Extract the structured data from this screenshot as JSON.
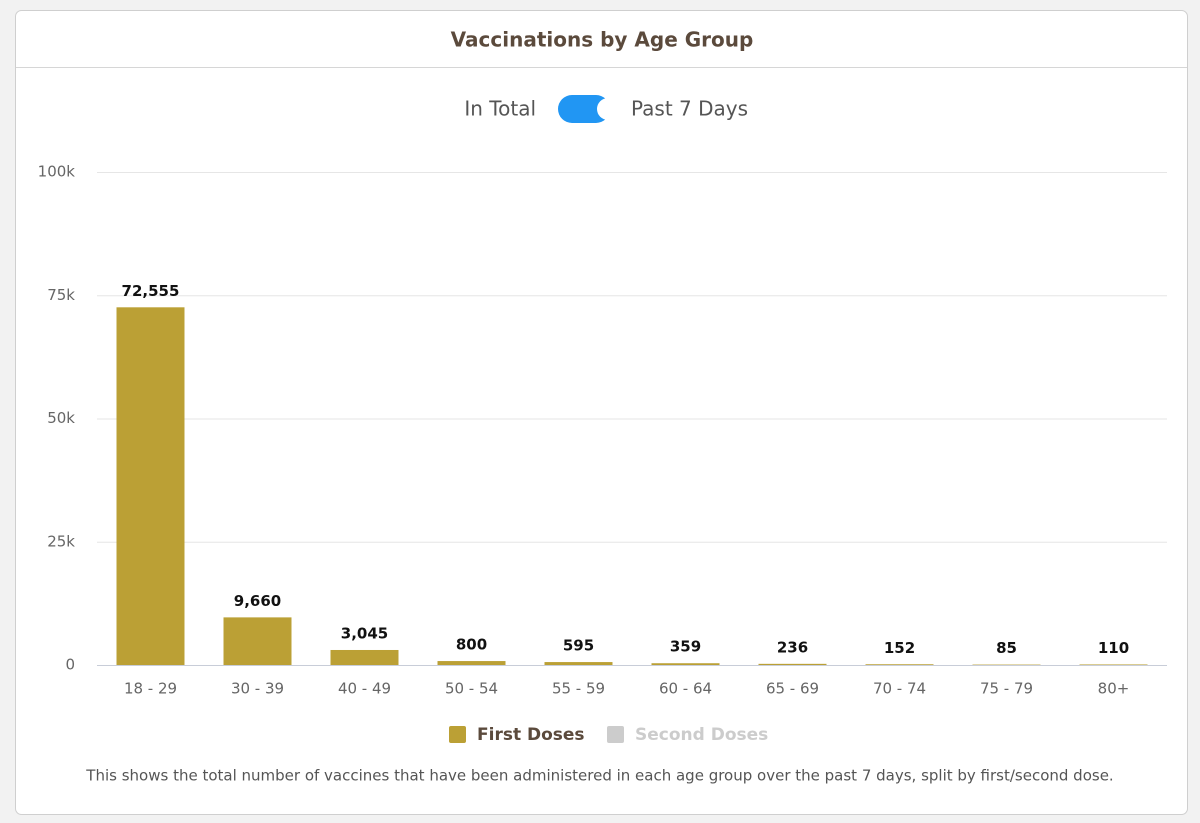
{
  "chart_data": {
    "type": "bar",
    "title": "Vaccinations by Age Group",
    "toggle": {
      "left": "In Total",
      "right": "Past 7 Days"
    },
    "categories": [
      "18 - 29",
      "30 - 39",
      "40 - 49",
      "50 - 54",
      "55 - 59",
      "60 - 64",
      "65 - 69",
      "70 - 74",
      "75 - 79",
      "80+"
    ],
    "series": [
      {
        "name": "First Doses",
        "color": "#bba035",
        "visible": true,
        "values": [
          72555,
          9660,
          3045,
          800,
          595,
          359,
          236,
          152,
          85,
          110
        ],
        "value_labels": [
          "72,555",
          "9,660",
          "3,045",
          "800",
          "595",
          "359",
          "236",
          "152",
          "85",
          "110"
        ]
      },
      {
        "name": "Second Doses",
        "color": "#cccccc",
        "visible": false
      }
    ],
    "ylim": [
      0,
      100000
    ],
    "yticks": [
      0,
      {
        "value": 25000,
        "label": "25k"
      },
      {
        "value": 50000,
        "label": "50k"
      },
      {
        "value": 75000,
        "label": "75k"
      },
      {
        "value": 100000,
        "label": "100k"
      }
    ],
    "grid": true,
    "caption": "This shows the total number of vaccines that have been administered in each age group over the past 7 days, split by first/second dose."
  }
}
